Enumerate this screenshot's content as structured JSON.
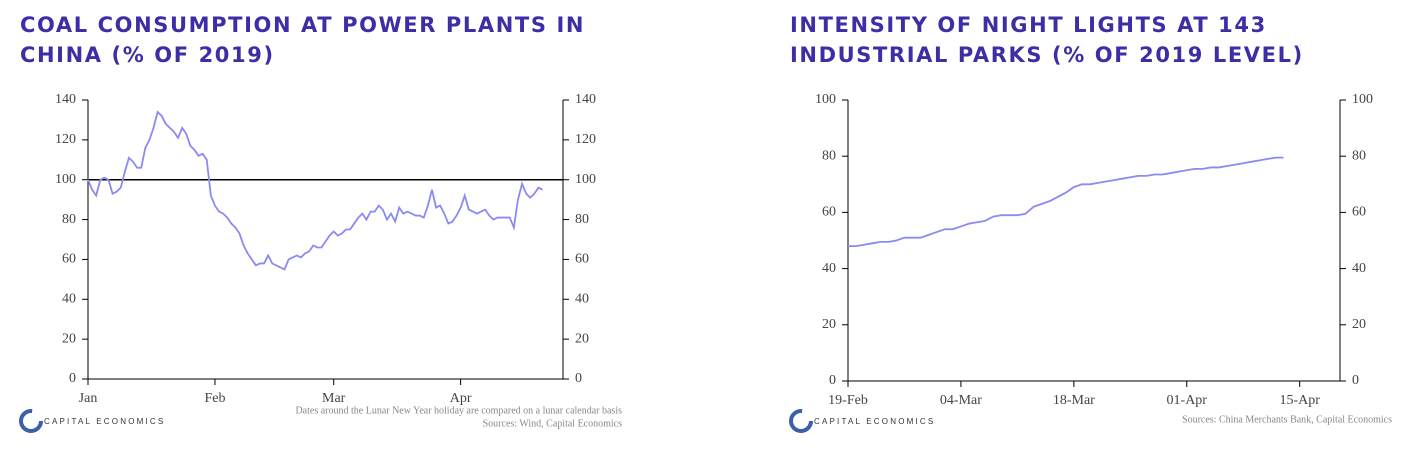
{
  "logo_text": "CAPITAL ECONOMICS",
  "chart_data": [
    {
      "type": "line",
      "title": "COAL CONSUMPTION AT POWER PLANTS IN CHINA (% OF 2019)",
      "x": [
        0,
        1,
        2,
        3,
        4,
        5,
        6,
        7,
        8,
        9,
        10,
        11,
        12,
        13,
        14,
        15,
        16,
        17,
        18,
        19,
        20,
        21,
        22,
        23,
        24,
        25,
        26,
        27,
        28,
        29,
        30,
        31,
        32,
        33,
        34,
        35,
        36,
        37,
        38,
        39,
        40,
        41,
        42,
        43,
        44,
        45,
        46,
        47,
        48,
        49,
        50,
        51,
        52,
        53,
        54,
        55,
        56,
        57,
        58,
        59,
        60,
        61,
        62,
        63,
        64,
        65,
        66,
        67,
        68,
        69,
        70,
        71,
        72,
        73,
        74,
        75,
        76,
        77,
        78,
        79,
        80,
        81,
        82,
        83,
        84,
        85,
        86,
        87,
        88,
        89,
        90,
        91,
        92,
        93,
        94,
        95,
        96,
        97,
        98,
        99,
        100,
        101,
        102,
        103,
        104,
        105,
        106,
        107,
        108,
        109,
        110,
        111
      ],
      "series": [
        {
          "color": "#8a8af2",
          "values": [
            100,
            95,
            92,
            100,
            101,
            100,
            93,
            94,
            96,
            104,
            111,
            109,
            106,
            106,
            116,
            120,
            126,
            134,
            132,
            128,
            126,
            124,
            121,
            126,
            123,
            117,
            115,
            112,
            113,
            110,
            92,
            87,
            84,
            83,
            81,
            78,
            76,
            73,
            67,
            63,
            60,
            57,
            58,
            58,
            62,
            58,
            57,
            56,
            55,
            60,
            61,
            62,
            61,
            63,
            64,
            67,
            66,
            66,
            69,
            72,
            74,
            72,
            73,
            75,
            75,
            78,
            81,
            83,
            80,
            84,
            84,
            87,
            85,
            80,
            83,
            79,
            86,
            83,
            84,
            83,
            82,
            82,
            81,
            87,
            95,
            86,
            87,
            83,
            78,
            79,
            82,
            86,
            92,
            85,
            84,
            83,
            84,
            85,
            82,
            80,
            81,
            81,
            81,
            81,
            76,
            90,
            98,
            93,
            91,
            93,
            96,
            95
          ]
        }
      ],
      "xlim": [
        0,
        116
      ],
      "xticks": [
        {
          "value": 0,
          "label": "Jan"
        },
        {
          "value": 31,
          "label": "Feb"
        },
        {
          "value": 60,
          "label": "Mar"
        },
        {
          "value": 91,
          "label": "Apr"
        }
      ],
      "ylim": [
        0,
        140
      ],
      "yticks": [
        0,
        20,
        40,
        60,
        80,
        100,
        120,
        140
      ],
      "hline": 100,
      "notes": [
        "Dates around the Lunar New Year holiday are compared on a lunar calendar basis",
        "Sources: Wind, Capital Economics"
      ]
    },
    {
      "type": "line",
      "title": "INTENSITY OF NIGHT LIGHTS AT 143 INDUSTRIAL PARKS (% OF 2019 LEVEL)",
      "x": [
        0,
        1,
        2,
        3,
        4,
        5,
        6,
        7,
        8,
        9,
        10,
        11,
        12,
        13,
        14,
        15,
        16,
        17,
        18,
        19,
        20,
        21,
        22,
        23,
        24,
        25,
        26,
        27,
        28,
        29,
        30,
        31,
        32,
        33,
        34,
        35,
        36,
        37,
        38,
        39,
        40,
        41,
        42,
        43,
        44,
        45,
        46,
        47,
        48,
        49,
        50,
        51,
        52,
        53,
        54
      ],
      "series": [
        {
          "color": "#8a8af2",
          "values": [
            48,
            48,
            48.5,
            49,
            49.5,
            49.5,
            50,
            51,
            51,
            51,
            52,
            53,
            54,
            54,
            55,
            56,
            56.5,
            57,
            58.5,
            59,
            59,
            59,
            59.5,
            62,
            63,
            64,
            65.5,
            67,
            69,
            70,
            70,
            70.5,
            71,
            71.5,
            72,
            72.5,
            73,
            73,
            73.5,
            73.5,
            74,
            74.5,
            75,
            75.5,
            75.5,
            76,
            76,
            76.5,
            77,
            77.5,
            78,
            78.5,
            79,
            79.5,
            79.5
          ]
        }
      ],
      "xlim": [
        0,
        61
      ],
      "xticks": [
        {
          "value": 0,
          "label": "19-Feb"
        },
        {
          "value": 14,
          "label": "04-Mar"
        },
        {
          "value": 28,
          "label": "18-Mar"
        },
        {
          "value": 42,
          "label": "01-Apr"
        },
        {
          "value": 56,
          "label": "15-Apr"
        }
      ],
      "ylim": [
        0,
        100
      ],
      "yticks": [
        0,
        20,
        40,
        60,
        80,
        100
      ],
      "notes": [
        "Sources: China Merchants Bank, Capital Economics"
      ]
    }
  ]
}
